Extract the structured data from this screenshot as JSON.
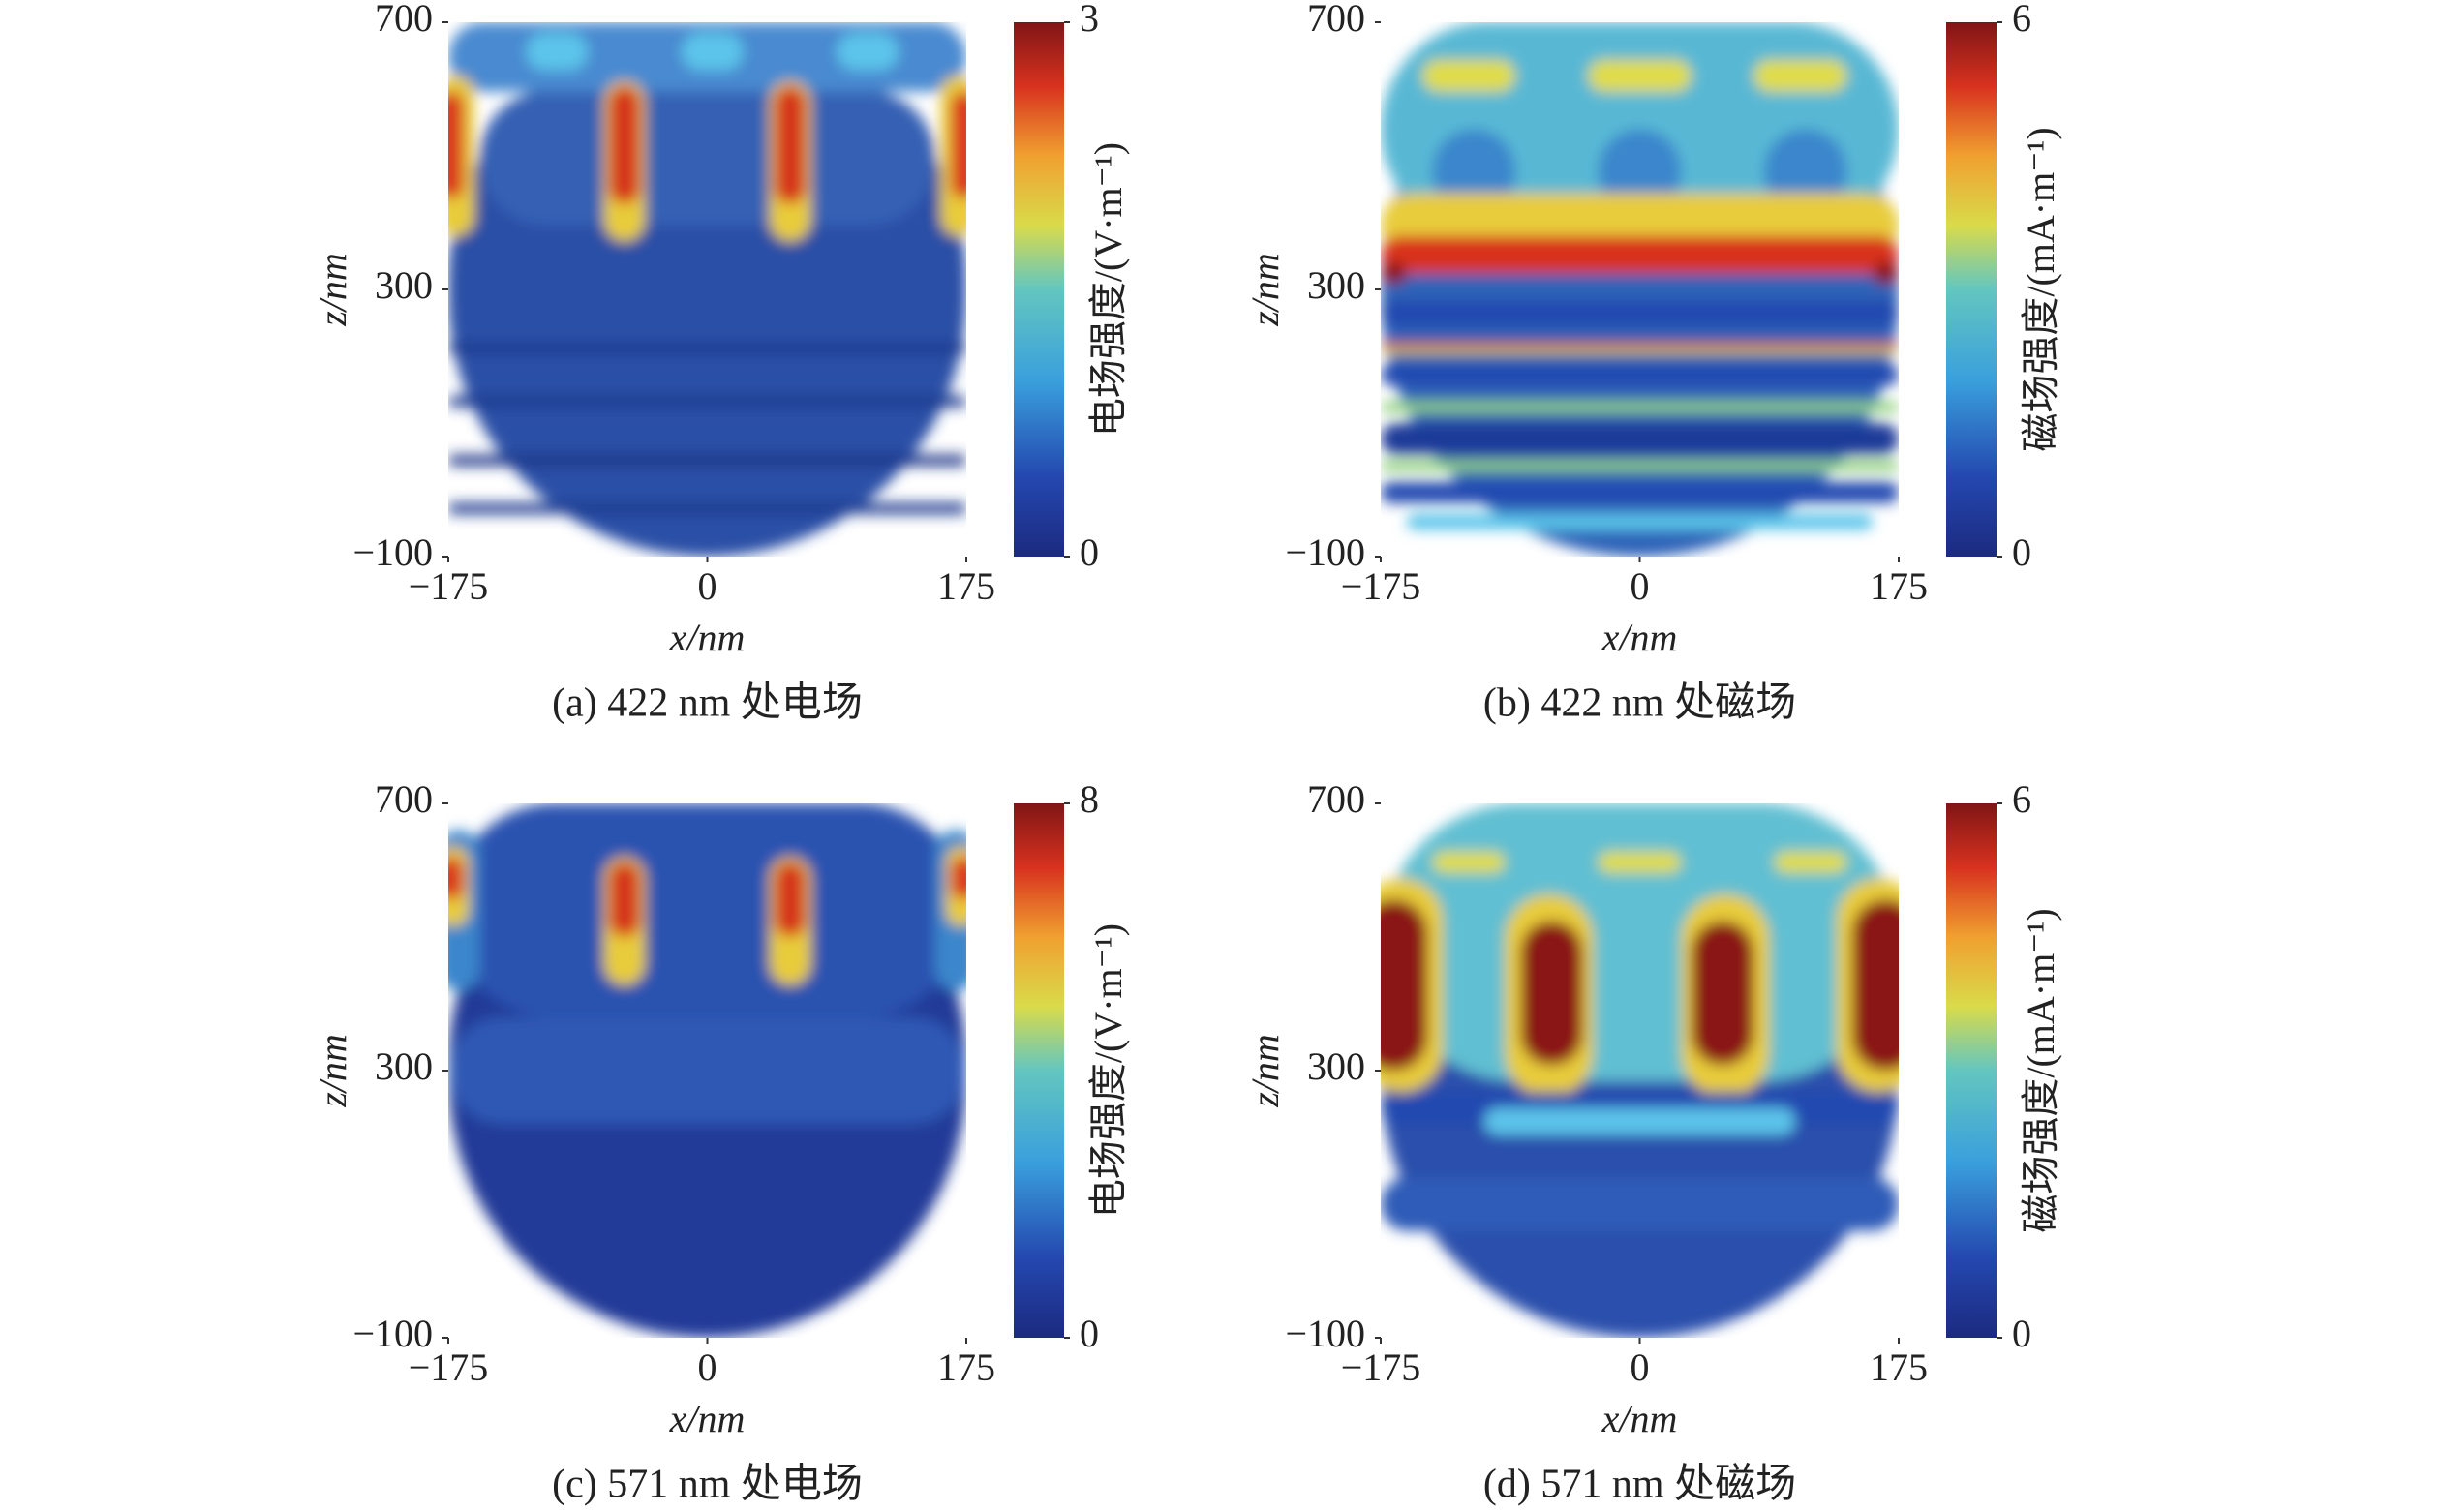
{
  "chart_data": [
    {
      "type": "heatmap",
      "caption": "(a) 422 nm 处电场",
      "x_label": "x/nm",
      "y_label": "z/nm",
      "colorbar_label": "电场强度/(V·m⁻¹)",
      "xlim": [
        -175,
        175
      ],
      "xticks": [
        {
          "value": -175,
          "label": "−175"
        },
        0,
        175
      ],
      "ylim": [
        -100,
        700
      ],
      "yticks": [
        {
          "value": -100,
          "label": "−100"
        },
        300,
        700
      ],
      "clim": [
        0,
        3
      ],
      "cticks": [
        0,
        3
      ]
    },
    {
      "type": "heatmap",
      "caption": "(b) 422 nm 处磁场",
      "x_label": "x/nm",
      "y_label": "z/nm",
      "colorbar_label": "磁场强度/(mA·m⁻¹)",
      "xlim": [
        -175,
        175
      ],
      "xticks": [
        {
          "value": -175,
          "label": "−175"
        },
        0,
        175
      ],
      "ylim": [
        -100,
        700
      ],
      "yticks": [
        {
          "value": -100,
          "label": "−100"
        },
        300,
        700
      ],
      "clim": [
        0,
        6
      ],
      "cticks": [
        0,
        6
      ]
    },
    {
      "type": "heatmap",
      "caption": "(c) 571 nm 处电场",
      "x_label": "x/nm",
      "y_label": "z/nm",
      "colorbar_label": "电场强度/(V·m⁻¹)",
      "xlim": [
        -175,
        175
      ],
      "xticks": [
        {
          "value": -175,
          "label": "−175"
        },
        0,
        175
      ],
      "ylim": [
        -100,
        700
      ],
      "yticks": [
        {
          "value": -100,
          "label": "−100"
        },
        300,
        700
      ],
      "clim": [
        0,
        8
      ],
      "cticks": [
        0,
        8
      ]
    },
    {
      "type": "heatmap",
      "caption": "(d) 571 nm 处磁场",
      "x_label": "x/nm",
      "y_label": "z/nm",
      "colorbar_label": "磁场强度/(mA·m⁻¹)",
      "xlim": [
        -175,
        175
      ],
      "xticks": [
        {
          "value": -175,
          "label": "−175"
        },
        0,
        175
      ],
      "ylim": [
        -100,
        700
      ],
      "yticks": [
        {
          "value": -100,
          "label": "−100"
        },
        300,
        700
      ],
      "clim": [
        0,
        6
      ],
      "cticks": [
        0,
        6
      ]
    }
  ]
}
